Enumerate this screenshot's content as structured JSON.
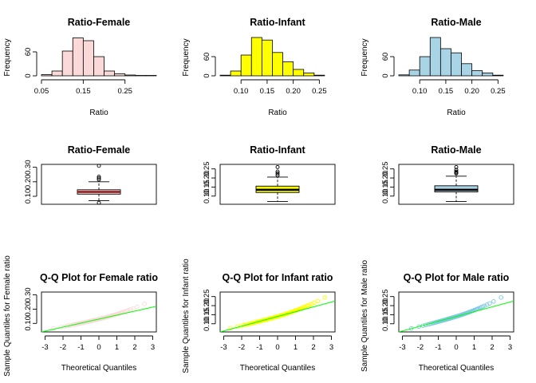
{
  "chart_data": [
    {
      "type": "bar",
      "kind": "histogram",
      "title": "Ratio-Female",
      "xlabel": "Ratio",
      "ylabel": "Frequency",
      "color": "#fcd9d9",
      "bin_edges": [
        0.05,
        0.075,
        0.1,
        0.125,
        0.15,
        0.175,
        0.2,
        0.225,
        0.25,
        0.275,
        0.3,
        0.325
      ],
      "values": [
        3,
        12,
        62,
        95,
        88,
        48,
        12,
        5,
        2,
        1,
        1
      ],
      "xlim": [
        0.05,
        0.325
      ],
      "ylim": [
        0,
        100
      ],
      "xticks": [
        "0.05",
        "0.15",
        "0.25"
      ],
      "yticks": [
        "0",
        "60"
      ]
    },
    {
      "type": "bar",
      "kind": "histogram",
      "title": "Ratio-Infant",
      "xlabel": "Ratio",
      "ylabel": "Frequency",
      "color": "#ffff00",
      "bin_edges": [
        0.06,
        0.08,
        0.1,
        0.12,
        0.14,
        0.16,
        0.18,
        0.2,
        0.22,
        0.24,
        0.26
      ],
      "values": [
        2,
        15,
        65,
        120,
        112,
        73,
        44,
        20,
        9,
        2
      ],
      "xlim": [
        0.06,
        0.28
      ],
      "ylim": [
        0,
        125
      ],
      "xticks": [
        "0.10",
        "0.15",
        "0.20",
        "0.25"
      ],
      "yticks": [
        "0",
        "60"
      ]
    },
    {
      "type": "bar",
      "kind": "histogram",
      "title": "Ratio-Male",
      "xlabel": "Ratio",
      "ylabel": "Frequency",
      "color": "#a8d4e6",
      "bin_edges": [
        0.06,
        0.08,
        0.1,
        0.12,
        0.14,
        0.16,
        0.18,
        0.2,
        0.22,
        0.24,
        0.26
      ],
      "values": [
        3,
        18,
        60,
        120,
        85,
        72,
        38,
        16,
        9,
        2
      ],
      "xlim": [
        0.06,
        0.28
      ],
      "ylim": [
        0,
        125
      ],
      "xticks": [
        "0.10",
        "0.15",
        "0.20",
        "0.25"
      ],
      "yticks": [
        "0",
        "60"
      ]
    },
    {
      "type": "box",
      "title": "Ratio-Female",
      "color": "#fcd9d9",
      "median_color": "#8b1a1a",
      "stats": {
        "lower_whisker": 0.07,
        "q1": 0.115,
        "median": 0.13,
        "q3": 0.145,
        "upper_whisker": 0.2
      },
      "outliers": [
        0.055,
        0.215,
        0.225,
        0.235,
        0.31
      ],
      "ylim": [
        0.045,
        0.32
      ],
      "yticks": [
        "0.10",
        "0.20",
        "0.30"
      ]
    },
    {
      "type": "box",
      "title": "Ratio-Infant",
      "color": "#ffff00",
      "median_color": "#000000",
      "stats": {
        "lower_whisker": 0.07,
        "q1": 0.12,
        "median": 0.135,
        "q3": 0.155,
        "upper_whisker": 0.205
      },
      "outliers": [
        0.215,
        0.225,
        0.235,
        0.26
      ],
      "ylim": [
        0.055,
        0.275
      ],
      "yticks": [
        "0.10",
        "0.15",
        "0.20",
        "0.25"
      ]
    },
    {
      "type": "box",
      "title": "Ratio-Male",
      "color": "#a8d4e6",
      "median_color": "#000000",
      "stats": {
        "lower_whisker": 0.07,
        "q1": 0.123,
        "median": 0.135,
        "q3": 0.157,
        "upper_whisker": 0.21
      },
      "outliers": [
        0.225,
        0.23,
        0.235,
        0.245,
        0.26
      ],
      "ylim": [
        0.055,
        0.275
      ],
      "yticks": [
        "0.10",
        "0.15",
        "0.20",
        "0.25"
      ]
    },
    {
      "type": "scatter",
      "kind": "qq",
      "title": "Q-Q Plot for Female ratio",
      "xlabel": "Theoretical Quantiles",
      "ylabel": "Sample Quantiles for Female ratio",
      "point_color": "#fcd9d9",
      "line_color": "#00ff00",
      "n": 90,
      "mean": 0.13,
      "sd": 0.03,
      "line": {
        "x": [
          -3.2,
          3.2
        ],
        "y": [
          0.04,
          0.22
        ]
      },
      "xlim": [
        -3.2,
        3.2
      ],
      "ylim": [
        0.04,
        0.32
      ],
      "xticks": [
        "-3",
        "-2",
        "-1",
        "0",
        "1",
        "2",
        "3"
      ],
      "yticks": [
        "0.10",
        "0.20",
        "0.30"
      ]
    },
    {
      "type": "scatter",
      "kind": "qq",
      "title": "Q-Q Plot for Infant ratio",
      "xlabel": "Theoretical Quantiles",
      "ylabel": "Sample Quantiles for Infant ratio",
      "point_color": "#ffff00",
      "line_color": "#00ff00",
      "n": 120,
      "mean": 0.14,
      "sd": 0.028,
      "line": {
        "x": [
          -3.2,
          3.2
        ],
        "y": [
          0.055,
          0.225
        ]
      },
      "xlim": [
        -3.2,
        3.2
      ],
      "ylim": [
        0.055,
        0.275
      ],
      "xticks": [
        "-3",
        "-2",
        "-1",
        "0",
        "1",
        "2",
        "3"
      ],
      "yticks": [
        "0.10",
        "0.15",
        "0.20",
        "0.25"
      ]
    },
    {
      "type": "scatter",
      "kind": "qq",
      "title": "Q-Q Plot for Male ratio",
      "xlabel": "Theoretical Quantiles",
      "ylabel": "Sample Quantiles for Male ratio",
      "point_color": "#7ec8e3",
      "line_color": "#00ff00",
      "n": 80,
      "mean": 0.14,
      "sd": 0.03,
      "line": {
        "x": [
          -3.2,
          3.2
        ],
        "y": [
          0.055,
          0.225
        ]
      },
      "xlim": [
        -3.2,
        3.2
      ],
      "ylim": [
        0.055,
        0.275
      ],
      "xticks": [
        "-3",
        "-2",
        "-1",
        "0",
        "1",
        "2",
        "3"
      ],
      "yticks": [
        "0.10",
        "0.15",
        "0.20",
        "0.25"
      ]
    }
  ]
}
